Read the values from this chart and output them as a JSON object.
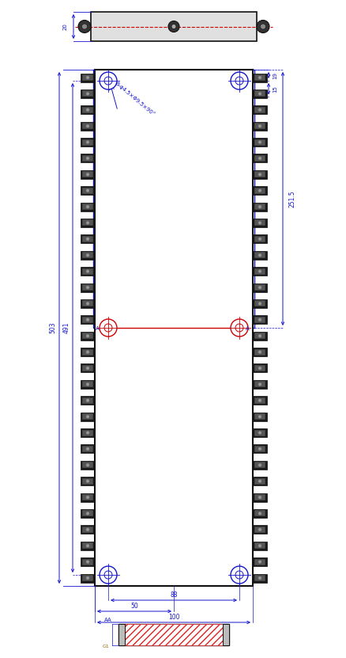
{
  "bg_color": "#ffffff",
  "blue": "#1515cc",
  "red": "#cc0000",
  "black": "#111111",
  "dim_20": "20",
  "dim_19": "19",
  "dim_15": "15",
  "dim_251_5": "251.5",
  "dim_503": "503",
  "dim_491": "491",
  "dim_88": "88",
  "dim_50": "50",
  "dim_100": "100",
  "hole_label": "6-φ4.5×Φ9.5×90°",
  "n_conn": 32
}
